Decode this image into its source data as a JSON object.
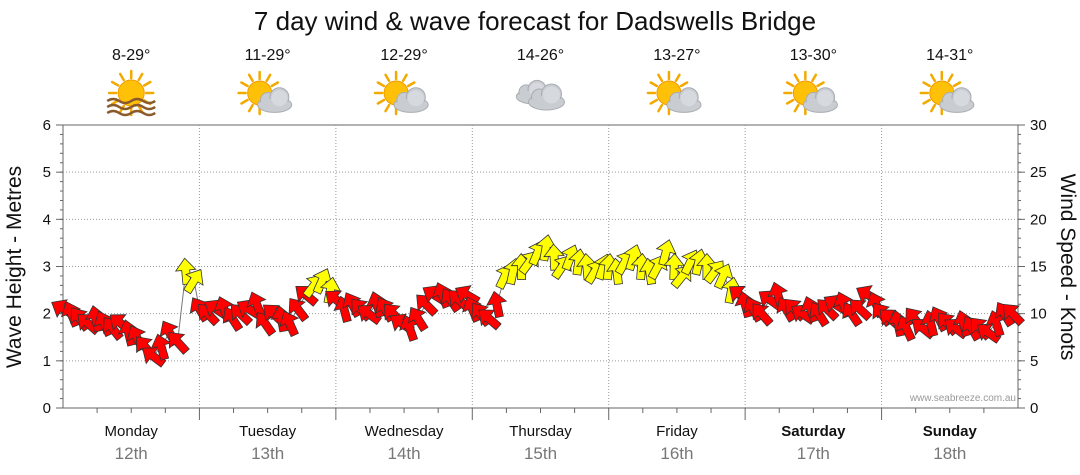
{
  "title": "7 day wind & wave forecast for Dadswells Bridge",
  "credit": "www.seabreeze.com.au",
  "colors": {
    "strong_wind": "#ff0000",
    "moderate_wind": "#ffff00",
    "grid": "#999999"
  },
  "days": [
    {
      "name": "Monday",
      "date": "12th",
      "temp": "8-29°",
      "icon": "sun-haze-icon",
      "bold": false
    },
    {
      "name": "Tuesday",
      "date": "13th",
      "temp": "11-29°",
      "icon": "partly-cloudy-icon",
      "bold": false
    },
    {
      "name": "Wednesday",
      "date": "14th",
      "temp": "12-29°",
      "icon": "partly-cloudy-icon",
      "bold": false
    },
    {
      "name": "Thursday",
      "date": "15th",
      "temp": "14-26°",
      "icon": "cloudy-icon",
      "bold": false
    },
    {
      "name": "Friday",
      "date": "16th",
      "temp": "13-27°",
      "icon": "partly-cloudy-icon",
      "bold": false
    },
    {
      "name": "Saturday",
      "date": "17th",
      "temp": "13-30°",
      "icon": "partly-cloudy-icon",
      "bold": true
    },
    {
      "name": "Sunday",
      "date": "18th",
      "temp": "14-31°",
      "icon": "partly-cloudy-icon",
      "bold": true
    }
  ],
  "chart_data": {
    "type": "line",
    "title": "7 day wind & wave forecast for Dadswells Bridge",
    "ylabel_left": "Wave Height - Metres",
    "ylabel_right": "Wind Speed - Knots",
    "ylim_left": [
      0,
      6
    ],
    "ylim_right": [
      0,
      30
    ],
    "yticks_left": [
      "0",
      "1",
      "2",
      "3",
      "4",
      "5",
      "6"
    ],
    "yticks_right": [
      "0",
      "5",
      "10",
      "15",
      "20",
      "25",
      "30"
    ],
    "grid": true,
    "series": [
      {
        "name": "Wind Speed - Knots",
        "axis": "right",
        "x": [
          0.0,
          0.06,
          0.12,
          0.18,
          0.24,
          0.3,
          0.36,
          0.42,
          0.48,
          0.54,
          0.6,
          0.66,
          0.72,
          0.78,
          0.84,
          0.9,
          0.96,
          1.0,
          1.06,
          1.12,
          1.18,
          1.24,
          1.3,
          1.36,
          1.42,
          1.48,
          1.54,
          1.6,
          1.66,
          1.72,
          1.78,
          1.84,
          1.9,
          1.96,
          2.0,
          2.06,
          2.12,
          2.18,
          2.24,
          2.3,
          2.36,
          2.42,
          2.48,
          2.54,
          2.6,
          2.66,
          2.72,
          2.78,
          2.84,
          2.9,
          2.96,
          3.0,
          3.06,
          3.12,
          3.18,
          3.24,
          3.3,
          3.36,
          3.42,
          3.48,
          3.54,
          3.6,
          3.66,
          3.72,
          3.78,
          3.84,
          3.9,
          3.96,
          4.0,
          4.06,
          4.12,
          4.18,
          4.24,
          4.3,
          4.36,
          4.42,
          4.48,
          4.54,
          4.6,
          4.66,
          4.72,
          4.78,
          4.84,
          4.9,
          4.96,
          5.0,
          5.06,
          5.12,
          5.18,
          5.24,
          5.3,
          5.36,
          5.42,
          5.48,
          5.54,
          5.6,
          5.66,
          5.72,
          5.78,
          5.84,
          5.9,
          5.96,
          6.0,
          6.06,
          6.12,
          6.18,
          6.24,
          6.3,
          6.36,
          6.42,
          6.48,
          6.54,
          6.6,
          6.66,
          6.72,
          6.78,
          6.84,
          6.9,
          6.96
        ],
        "values": [
          10.5,
          10.0,
          9.5,
          9.0,
          9.5,
          9.0,
          8.5,
          9.0,
          8.0,
          7.5,
          6.5,
          5.5,
          6.5,
          8.0,
          7.0,
          14.5,
          13.5,
          10.5,
          10.0,
          10.5,
          10.5,
          9.5,
          10.0,
          10.5,
          11.0,
          9.0,
          10.0,
          9.5,
          9.0,
          10.5,
          12.0,
          13.0,
          13.5,
          12.5,
          11.5,
          10.5,
          11.0,
          10.5,
          10.0,
          11.0,
          10.5,
          10.0,
          9.0,
          8.5,
          9.5,
          11.0,
          12.0,
          12.0,
          11.5,
          11.5,
          12.0,
          10.5,
          10.0,
          9.5,
          11.0,
          14.0,
          14.5,
          15.0,
          15.5,
          16.5,
          17.0,
          16.0,
          15.0,
          16.0,
          15.5,
          15.0,
          14.5,
          15.0,
          15.0,
          14.5,
          15.5,
          16.0,
          15.0,
          14.5,
          15.0,
          16.5,
          15.0,
          14.0,
          15.5,
          15.5,
          15.0,
          14.5,
          14.0,
          12.5,
          12.0,
          11.0,
          10.5,
          10.0,
          11.5,
          12.0,
          10.5,
          10.5,
          10.0,
          10.5,
          10.0,
          10.5,
          11.0,
          11.0,
          10.0,
          10.5,
          12.0,
          11.0,
          10.0,
          9.5,
          9.0,
          8.5,
          9.5,
          8.5,
          9.0,
          9.5,
          9.0,
          8.5,
          9.0,
          8.5,
          8.5,
          8.0,
          9.0,
          10.0,
          10.0
        ]
      }
    ]
  }
}
